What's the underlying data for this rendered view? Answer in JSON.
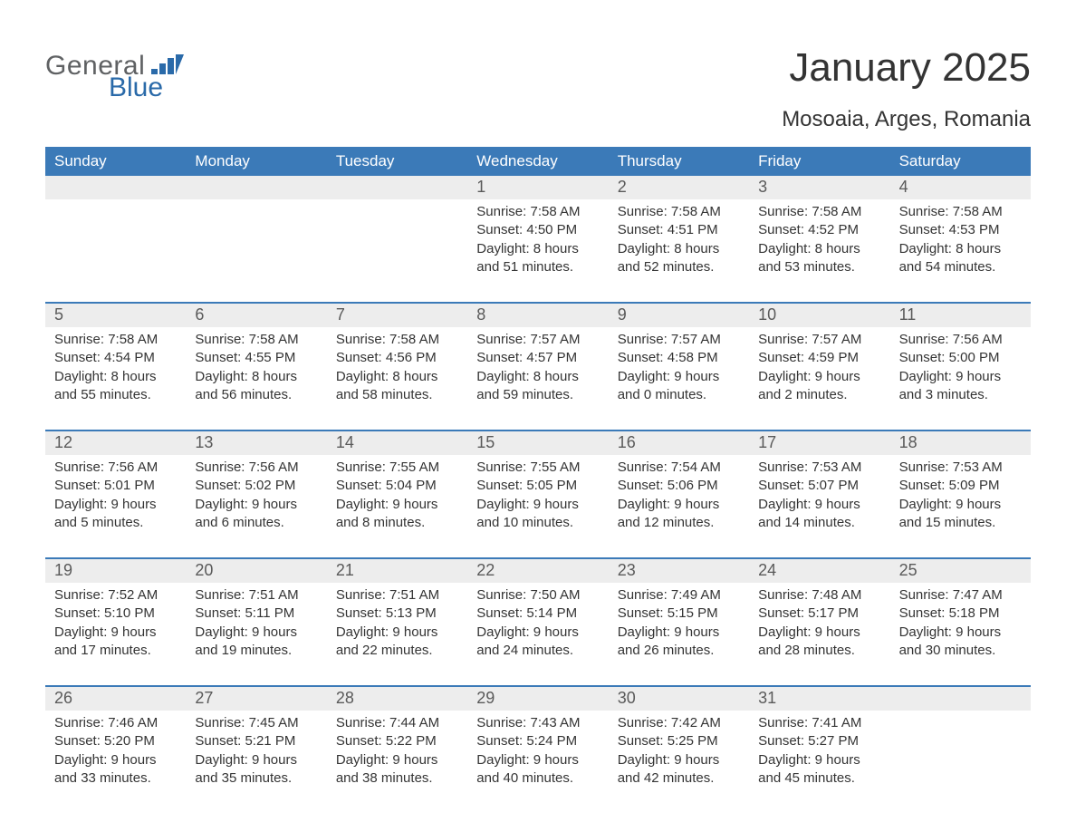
{
  "logo": {
    "general": "General",
    "blue": "Blue"
  },
  "title": "January 2025",
  "location": "Mosoaia, Arges, Romania",
  "colors": {
    "header_blue": "#3b7ab8",
    "row_light": "#ededed",
    "row_separator": "#3b7ab8",
    "text_dark": "#343434",
    "text_grey": "#5a5a5a",
    "logo_grey": "#5f6163",
    "logo_blue": "#2a6aa9",
    "background": "#ffffff"
  },
  "weekdays": [
    "Sunday",
    "Monday",
    "Tuesday",
    "Wednesday",
    "Thursday",
    "Friday",
    "Saturday"
  ],
  "weeks": [
    {
      "days": [
        null,
        null,
        null,
        {
          "n": "1",
          "sunrise": "7:58 AM",
          "sunset": "4:50 PM",
          "dl1": "8 hours",
          "dl2": "and 51 minutes."
        },
        {
          "n": "2",
          "sunrise": "7:58 AM",
          "sunset": "4:51 PM",
          "dl1": "8 hours",
          "dl2": "and 52 minutes."
        },
        {
          "n": "3",
          "sunrise": "7:58 AM",
          "sunset": "4:52 PM",
          "dl1": "8 hours",
          "dl2": "and 53 minutes."
        },
        {
          "n": "4",
          "sunrise": "7:58 AM",
          "sunset": "4:53 PM",
          "dl1": "8 hours",
          "dl2": "and 54 minutes."
        }
      ]
    },
    {
      "days": [
        {
          "n": "5",
          "sunrise": "7:58 AM",
          "sunset": "4:54 PM",
          "dl1": "8 hours",
          "dl2": "and 55 minutes."
        },
        {
          "n": "6",
          "sunrise": "7:58 AM",
          "sunset": "4:55 PM",
          "dl1": "8 hours",
          "dl2": "and 56 minutes."
        },
        {
          "n": "7",
          "sunrise": "7:58 AM",
          "sunset": "4:56 PM",
          "dl1": "8 hours",
          "dl2": "and 58 minutes."
        },
        {
          "n": "8",
          "sunrise": "7:57 AM",
          "sunset": "4:57 PM",
          "dl1": "8 hours",
          "dl2": "and 59 minutes."
        },
        {
          "n": "9",
          "sunrise": "7:57 AM",
          "sunset": "4:58 PM",
          "dl1": "9 hours",
          "dl2": "and 0 minutes."
        },
        {
          "n": "10",
          "sunrise": "7:57 AM",
          "sunset": "4:59 PM",
          "dl1": "9 hours",
          "dl2": "and 2 minutes."
        },
        {
          "n": "11",
          "sunrise": "7:56 AM",
          "sunset": "5:00 PM",
          "dl1": "9 hours",
          "dl2": "and 3 minutes."
        }
      ]
    },
    {
      "days": [
        {
          "n": "12",
          "sunrise": "7:56 AM",
          "sunset": "5:01 PM",
          "dl1": "9 hours",
          "dl2": "and 5 minutes."
        },
        {
          "n": "13",
          "sunrise": "7:56 AM",
          "sunset": "5:02 PM",
          "dl1": "9 hours",
          "dl2": "and 6 minutes."
        },
        {
          "n": "14",
          "sunrise": "7:55 AM",
          "sunset": "5:04 PM",
          "dl1": "9 hours",
          "dl2": "and 8 minutes."
        },
        {
          "n": "15",
          "sunrise": "7:55 AM",
          "sunset": "5:05 PM",
          "dl1": "9 hours",
          "dl2": "and 10 minutes."
        },
        {
          "n": "16",
          "sunrise": "7:54 AM",
          "sunset": "5:06 PM",
          "dl1": "9 hours",
          "dl2": "and 12 minutes."
        },
        {
          "n": "17",
          "sunrise": "7:53 AM",
          "sunset": "5:07 PM",
          "dl1": "9 hours",
          "dl2": "and 14 minutes."
        },
        {
          "n": "18",
          "sunrise": "7:53 AM",
          "sunset": "5:09 PM",
          "dl1": "9 hours",
          "dl2": "and 15 minutes."
        }
      ]
    },
    {
      "days": [
        {
          "n": "19",
          "sunrise": "7:52 AM",
          "sunset": "5:10 PM",
          "dl1": "9 hours",
          "dl2": "and 17 minutes."
        },
        {
          "n": "20",
          "sunrise": "7:51 AM",
          "sunset": "5:11 PM",
          "dl1": "9 hours",
          "dl2": "and 19 minutes."
        },
        {
          "n": "21",
          "sunrise": "7:51 AM",
          "sunset": "5:13 PM",
          "dl1": "9 hours",
          "dl2": "and 22 minutes."
        },
        {
          "n": "22",
          "sunrise": "7:50 AM",
          "sunset": "5:14 PM",
          "dl1": "9 hours",
          "dl2": "and 24 minutes."
        },
        {
          "n": "23",
          "sunrise": "7:49 AM",
          "sunset": "5:15 PM",
          "dl1": "9 hours",
          "dl2": "and 26 minutes."
        },
        {
          "n": "24",
          "sunrise": "7:48 AM",
          "sunset": "5:17 PM",
          "dl1": "9 hours",
          "dl2": "and 28 minutes."
        },
        {
          "n": "25",
          "sunrise": "7:47 AM",
          "sunset": "5:18 PM",
          "dl1": "9 hours",
          "dl2": "and 30 minutes."
        }
      ]
    },
    {
      "days": [
        {
          "n": "26",
          "sunrise": "7:46 AM",
          "sunset": "5:20 PM",
          "dl1": "9 hours",
          "dl2": "and 33 minutes."
        },
        {
          "n": "27",
          "sunrise": "7:45 AM",
          "sunset": "5:21 PM",
          "dl1": "9 hours",
          "dl2": "and 35 minutes."
        },
        {
          "n": "28",
          "sunrise": "7:44 AM",
          "sunset": "5:22 PM",
          "dl1": "9 hours",
          "dl2": "and 38 minutes."
        },
        {
          "n": "29",
          "sunrise": "7:43 AM",
          "sunset": "5:24 PM",
          "dl1": "9 hours",
          "dl2": "and 40 minutes."
        },
        {
          "n": "30",
          "sunrise": "7:42 AM",
          "sunset": "5:25 PM",
          "dl1": "9 hours",
          "dl2": "and 42 minutes."
        },
        {
          "n": "31",
          "sunrise": "7:41 AM",
          "sunset": "5:27 PM",
          "dl1": "9 hours",
          "dl2": "and 45 minutes."
        },
        null
      ]
    }
  ],
  "labels": {
    "sunrise_prefix": "Sunrise: ",
    "sunset_prefix": "Sunset: ",
    "daylight_prefix": "Daylight: "
  }
}
